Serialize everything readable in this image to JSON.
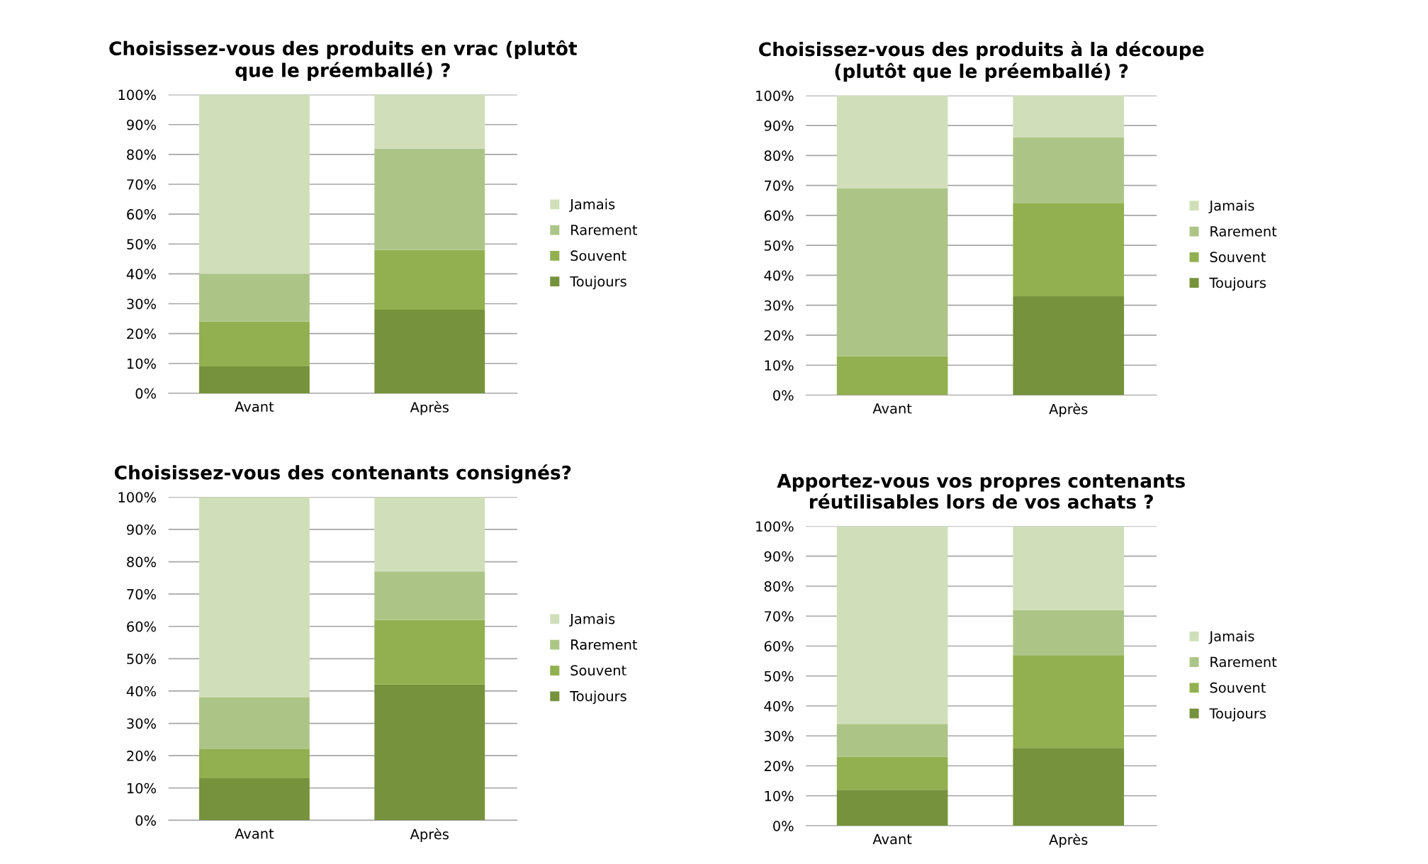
{
  "chart_data": [
    {
      "type": "bar",
      "stacked": true,
      "title": "Choisissez-vous des produits en vrac (plutôt\nque le préemballé) ?",
      "categories": [
        "Avant",
        "Après"
      ],
      "ylim": [
        0,
        100
      ],
      "yticks": [
        {
          "value": 0,
          "label": "0%"
        },
        {
          "value": 10,
          "label": "10%"
        },
        {
          "value": 20,
          "label": "20%"
        },
        {
          "value": 30,
          "label": "30%"
        },
        {
          "value": 40,
          "label": "40%"
        },
        {
          "value": 50,
          "label": "50%"
        },
        {
          "value": 60,
          "label": "60%"
        },
        {
          "value": 70,
          "label": "70%"
        },
        {
          "value": 80,
          "label": "80%"
        },
        {
          "value": 90,
          "label": "90%"
        },
        {
          "value": 100,
          "label": "100%"
        }
      ],
      "grid": "y",
      "legend": "right",
      "series": [
        {
          "name": "Toujours",
          "color": "#76923c",
          "values": [
            9,
            28
          ]
        },
        {
          "name": "Souvent",
          "color": "#92b050",
          "values": [
            15,
            20
          ]
        },
        {
          "name": "Rarement",
          "color": "#acc587",
          "values": [
            16,
            34
          ]
        },
        {
          "name": "Jamais",
          "color": "#d0dfb9",
          "values": [
            60,
            18
          ]
        }
      ]
    },
    {
      "type": "bar",
      "stacked": true,
      "title": "Choisissez-vous des produits à la découpe\n(plutôt que le préemballé) ?",
      "categories": [
        "Avant",
        "Après"
      ],
      "ylim": [
        0,
        100
      ],
      "yticks": [
        {
          "value": 0,
          "label": "0%"
        },
        {
          "value": 10,
          "label": "10%"
        },
        {
          "value": 20,
          "label": "20%"
        },
        {
          "value": 30,
          "label": "30%"
        },
        {
          "value": 40,
          "label": "40%"
        },
        {
          "value": 50,
          "label": "50%"
        },
        {
          "value": 60,
          "label": "60%"
        },
        {
          "value": 70,
          "label": "70%"
        },
        {
          "value": 80,
          "label": "80%"
        },
        {
          "value": 90,
          "label": "90%"
        },
        {
          "value": 100,
          "label": "100%"
        }
      ],
      "grid": "y",
      "legend": "right",
      "series": [
        {
          "name": "Toujours",
          "color": "#76923c",
          "values": [
            0,
            33
          ]
        },
        {
          "name": "Souvent",
          "color": "#92b050",
          "values": [
            13,
            31
          ]
        },
        {
          "name": "Rarement",
          "color": "#acc587",
          "values": [
            56,
            22
          ]
        },
        {
          "name": "Jamais",
          "color": "#d0dfb9",
          "values": [
            31,
            14
          ]
        }
      ]
    },
    {
      "type": "bar",
      "stacked": true,
      "title": "Choisissez-vous des contenants consignés?",
      "categories": [
        "Avant",
        "Après"
      ],
      "ylim": [
        0,
        100
      ],
      "yticks": [
        {
          "value": 0,
          "label": "0%"
        },
        {
          "value": 10,
          "label": "10%"
        },
        {
          "value": 20,
          "label": "20%"
        },
        {
          "value": 30,
          "label": "30%"
        },
        {
          "value": 40,
          "label": "40%"
        },
        {
          "value": 50,
          "label": "50%"
        },
        {
          "value": 60,
          "label": "60%"
        },
        {
          "value": 70,
          "label": "70%"
        },
        {
          "value": 80,
          "label": "80%"
        },
        {
          "value": 90,
          "label": "90%"
        },
        {
          "value": 100,
          "label": "100%"
        }
      ],
      "grid": "y",
      "legend": "right",
      "series": [
        {
          "name": "Toujours",
          "color": "#76923c",
          "values": [
            13,
            42
          ]
        },
        {
          "name": "Souvent",
          "color": "#92b050",
          "values": [
            9,
            20
          ]
        },
        {
          "name": "Rarement",
          "color": "#acc587",
          "values": [
            16,
            15
          ]
        },
        {
          "name": "Jamais",
          "color": "#d0dfb9",
          "values": [
            62,
            23
          ]
        }
      ]
    },
    {
      "type": "bar",
      "stacked": true,
      "title": "Apportez-vous vos propres contenants\nréutilisables lors de vos achats ?",
      "categories": [
        "Avant",
        "Après"
      ],
      "ylim": [
        0,
        100
      ],
      "yticks": [
        {
          "value": 0,
          "label": "0%"
        },
        {
          "value": 10,
          "label": "10%"
        },
        {
          "value": 20,
          "label": "20%"
        },
        {
          "value": 30,
          "label": "30%"
        },
        {
          "value": 40,
          "label": "40%"
        },
        {
          "value": 50,
          "label": "50%"
        },
        {
          "value": 60,
          "label": "60%"
        },
        {
          "value": 70,
          "label": "70%"
        },
        {
          "value": 80,
          "label": "80%"
        },
        {
          "value": 90,
          "label": "90%"
        },
        {
          "value": 100,
          "label": "100%"
        }
      ],
      "grid": "y",
      "legend": "right",
      "series": [
        {
          "name": "Toujours",
          "color": "#76923c",
          "values": [
            12,
            26
          ]
        },
        {
          "name": "Souvent",
          "color": "#92b050",
          "values": [
            11,
            31
          ]
        },
        {
          "name": "Rarement",
          "color": "#acc587",
          "values": [
            11,
            15
          ]
        },
        {
          "name": "Jamais",
          "color": "#d0dfb9",
          "values": [
            66,
            28
          ]
        }
      ]
    }
  ]
}
